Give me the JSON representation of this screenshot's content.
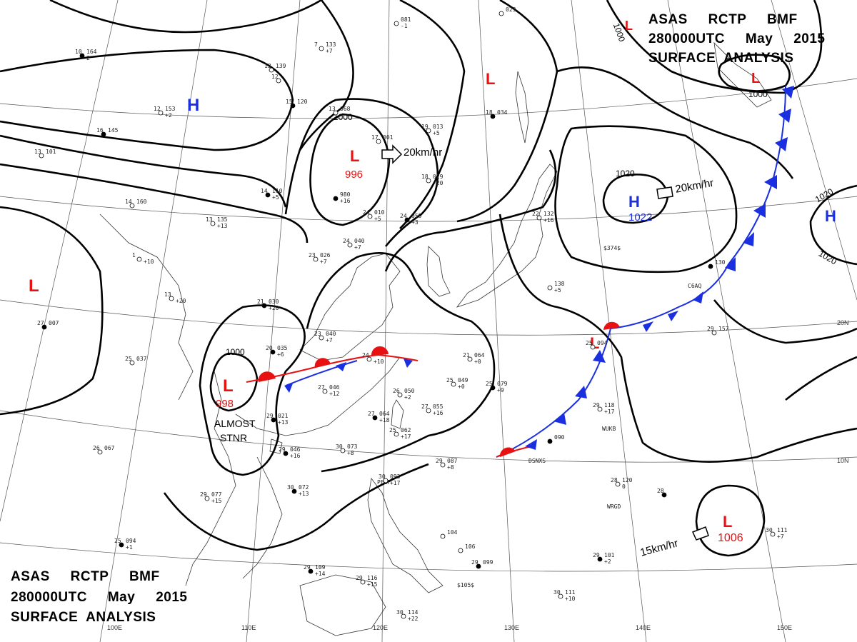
{
  "header_top": {
    "line1": "ASAS     RCTP     BMF",
    "line2": "280000UTC     May     2015",
    "line3": "SURFACE  ANALYSIS"
  },
  "header_bottom": {
    "line1": "ASAS     RCTP     BMF",
    "line2": "280000UTC     May     2015",
    "line3": "SURFACE  ANALYSIS"
  },
  "grid_labels": {
    "lon100": "100E",
    "lon110": "110E",
    "lon120": "120E",
    "lon130": "130E",
    "lon140": "140E",
    "lon150": "150E",
    "lat20": "20N",
    "lat10": "10N"
  },
  "pressure_systems": [
    {
      "id": "low-west",
      "type": "L",
      "value": ""
    },
    {
      "id": "high-north",
      "type": "H",
      "value": ""
    },
    {
      "id": "low-central",
      "type": "L",
      "value": "996"
    },
    {
      "id": "low-north-east",
      "type": "L",
      "value": ""
    },
    {
      "id": "low-south-china",
      "type": "L",
      "value": "998"
    },
    {
      "id": "high-pacific",
      "type": "H",
      "value": "1022"
    },
    {
      "id": "low-frontal",
      "type": "L",
      "value": ""
    },
    {
      "id": "low-pacific",
      "type": "L",
      "value": "1006"
    },
    {
      "id": "low-nw-pacific",
      "type": "L",
      "value": ""
    },
    {
      "id": "high-far-east",
      "type": "H",
      "value": ""
    },
    {
      "id": "low-top-right",
      "type": "L",
      "value": ""
    }
  ],
  "isobar_labels": {
    "low_central": "1000",
    "low_south": "1000",
    "high_pacific": "1020",
    "top_right": "1000",
    "top_right_b": "1000",
    "far_east_a": "1020",
    "far_east_b": "1020"
  },
  "motion_labels": {
    "low_central": "20km/hr",
    "high_pacific": "20km/hr",
    "low_pacific": "15km/hr"
  },
  "annotations": {
    "almost": "ALMOST",
    "stnr": "STNR"
  },
  "colors": {
    "low": "#e81010",
    "high": "#1a2fe0",
    "isobar": "#000000",
    "warm_front": "#e81010",
    "cold_front": "#1a2fe0"
  },
  "stations": [
    {
      "t": "10",
      "p": "164",
      "d": "2"
    },
    {
      "t": "13",
      "p": "139",
      "d": ""
    },
    {
      "t": "12",
      "p": "153",
      "d": "+2"
    },
    {
      "t": "16",
      "p": "145",
      "d": ""
    },
    {
      "t": "13",
      "p": "101",
      "d": ""
    },
    {
      "t": "7",
      "p": "133",
      "d": "+7"
    },
    {
      "t": "15",
      "p": "120",
      "d": ""
    },
    {
      "t": "13",
      "p": "068",
      "d": ""
    },
    {
      "t": "12",
      "p": "",
      "d": ""
    },
    {
      "t": "14",
      "p": "110",
      "d": "+5"
    },
    {
      "t": "14",
      "p": "160",
      "d": ""
    },
    {
      "t": "13",
      "p": "135",
      "d": "+13"
    },
    {
      "t": "",
      "p": "980",
      "d": "+16"
    },
    {
      "t": "17",
      "p": "001",
      "d": ""
    },
    {
      "t": "19",
      "p": "013",
      "d": "+5"
    },
    {
      "t": "18",
      "p": "034",
      "d": ""
    },
    {
      "t": "18",
      "p": "029",
      "d": "-20"
    },
    {
      "t": "24",
      "p": "010",
      "d": "+5"
    },
    {
      "t": "24",
      "p": "059",
      "d": "+3"
    },
    {
      "t": "24",
      "p": "040",
      "d": "+7"
    },
    {
      "t": "23",
      "p": "026",
      "d": "+7"
    },
    {
      "t": "21",
      "p": "030",
      "d": "+20"
    },
    {
      "t": "13",
      "p": "",
      "d": "+20"
    },
    {
      "t": "1",
      "p": "",
      "d": "+10"
    },
    {
      "t": "27",
      "p": "007",
      "d": ""
    },
    {
      "t": "25",
      "p": "037",
      "d": ""
    },
    {
      "t": "23",
      "p": "040",
      "d": "+7"
    },
    {
      "t": "20",
      "p": "035",
      "d": "+6"
    },
    {
      "t": "24",
      "p": "",
      "d": "+10"
    },
    {
      "t": "27",
      "p": "046",
      "d": "+12"
    },
    {
      "t": "29",
      "p": "021",
      "d": "+13"
    },
    {
      "t": "26",
      "p": "050",
      "d": "+2"
    },
    {
      "t": "25",
      "p": "049",
      "d": "+0"
    },
    {
      "t": "25",
      "p": "079",
      "d": "+9"
    },
    {
      "t": "21",
      "p": "064",
      "d": "+0"
    },
    {
      "t": "27",
      "p": "055",
      "d": "+16"
    },
    {
      "t": "27",
      "p": "064",
      "d": "+18"
    },
    {
      "t": "25",
      "p": "062",
      "d": "+17"
    },
    {
      "t": "30",
      "p": "073",
      "d": "+8"
    },
    {
      "t": "29",
      "p": "046",
      "d": "+16"
    },
    {
      "t": "26",
      "p": "067",
      "d": ""
    },
    {
      "t": "29",
      "p": "077",
      "d": "+15"
    },
    {
      "t": "30",
      "p": "072",
      "d": "+13"
    },
    {
      "t": "29",
      "p": "087",
      "d": "+8"
    },
    {
      "t": "30",
      "p": "093",
      "d": "+17"
    },
    {
      "t": "",
      "p": "090",
      "d": ""
    },
    {
      "t": "29",
      "p": "118",
      "d": "+17"
    },
    {
      "t": "28",
      "p": "120",
      "d": "0"
    },
    {
      "t": "28",
      "p": "",
      "d": ""
    },
    {
      "t": "29",
      "p": "157",
      "d": ""
    },
    {
      "t": "22",
      "p": "132",
      "d": "+16"
    },
    {
      "t": "",
      "p": "130",
      "d": ""
    },
    {
      "t": "",
      "p": "138",
      "d": "+5"
    },
    {
      "t": "25",
      "p": "094",
      "d": ""
    },
    {
      "t": "29",
      "p": "109",
      "d": "+14"
    },
    {
      "t": "29",
      "p": "116",
      "d": "+15"
    },
    {
      "t": "30",
      "p": "114",
      "d": "+22"
    },
    {
      "t": "29",
      "p": "099",
      "d": ""
    },
    {
      "t": "",
      "p": "104",
      "d": ""
    },
    {
      "t": "",
      "p": "106",
      "d": ""
    },
    {
      "t": "29",
      "p": "101",
      "d": "+2"
    },
    {
      "t": "30",
      "p": "111",
      "d": "+10"
    },
    {
      "t": "30",
      "p": "111",
      "d": "+7"
    },
    {
      "t": "25",
      "p": "094",
      "d": "+1"
    },
    {
      "t": "",
      "p": "081",
      "d": "-1"
    },
    {
      "t": "",
      "p": "023",
      "d": ""
    }
  ],
  "station_ids": {
    "a": "$374$",
    "b": "DSNXS",
    "c": "WUKB",
    "d": "WRGD",
    "e": "PFBF",
    "f": "$105$",
    "g": "C6AQ"
  }
}
